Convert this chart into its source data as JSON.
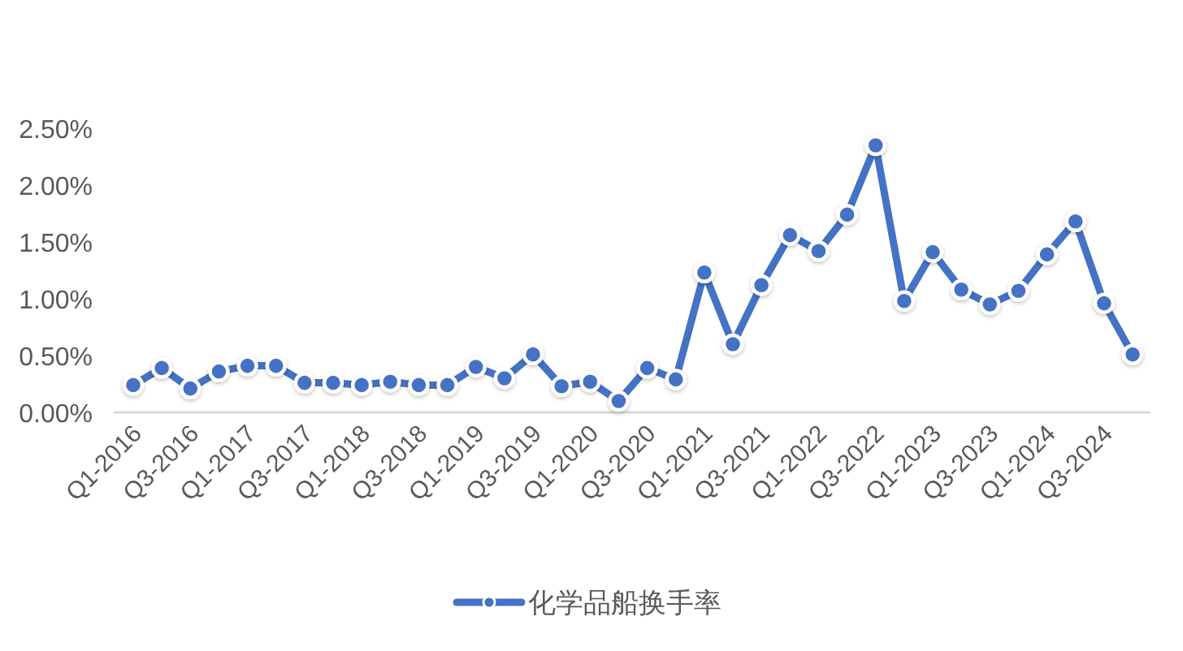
{
  "chart_data": {
    "type": "line",
    "categories": [
      "Q1-2016",
      null,
      "Q3-2016",
      null,
      "Q1-2017",
      null,
      "Q3-2017",
      null,
      "Q1-2018",
      null,
      "Q3-2018",
      null,
      "Q1-2019",
      null,
      "Q3-2019",
      null,
      "Q1-2020",
      null,
      "Q3-2020",
      null,
      "Q1-2021",
      null,
      "Q3-2021",
      null,
      "Q1-2022",
      null,
      "Q3-2022",
      null,
      "Q1-2023",
      null,
      "Q3-2023",
      null,
      "Q1-2024",
      null,
      "Q3-2024",
      null
    ],
    "series": [
      {
        "name": "化学品船换手率",
        "color": "#4472c4",
        "values": [
          0.24,
          0.39,
          0.21,
          0.36,
          0.41,
          0.41,
          0.26,
          0.26,
          0.24,
          0.27,
          0.24,
          0.24,
          0.4,
          0.3,
          0.51,
          0.23,
          0.27,
          0.1,
          0.39,
          0.29,
          1.23,
          0.6,
          1.12,
          1.56,
          1.42,
          1.74,
          2.35,
          0.98,
          1.41,
          1.08,
          0.95,
          1.07,
          1.39,
          1.68,
          0.96,
          0.51
        ]
      }
    ],
    "ylim": [
      0,
      2.5
    ],
    "yticks": [
      {
        "value": 0,
        "label": "0.00%"
      },
      {
        "value": 0.5,
        "label": "0.50%"
      },
      {
        "value": 1,
        "label": "1.00%"
      },
      {
        "value": 1.5,
        "label": "1.50%"
      },
      {
        "value": 2,
        "label": "2.00%"
      },
      {
        "value": 2.5,
        "label": "2.50%"
      }
    ],
    "legend": "bottom",
    "marker": "circle",
    "line_style": "solid"
  }
}
